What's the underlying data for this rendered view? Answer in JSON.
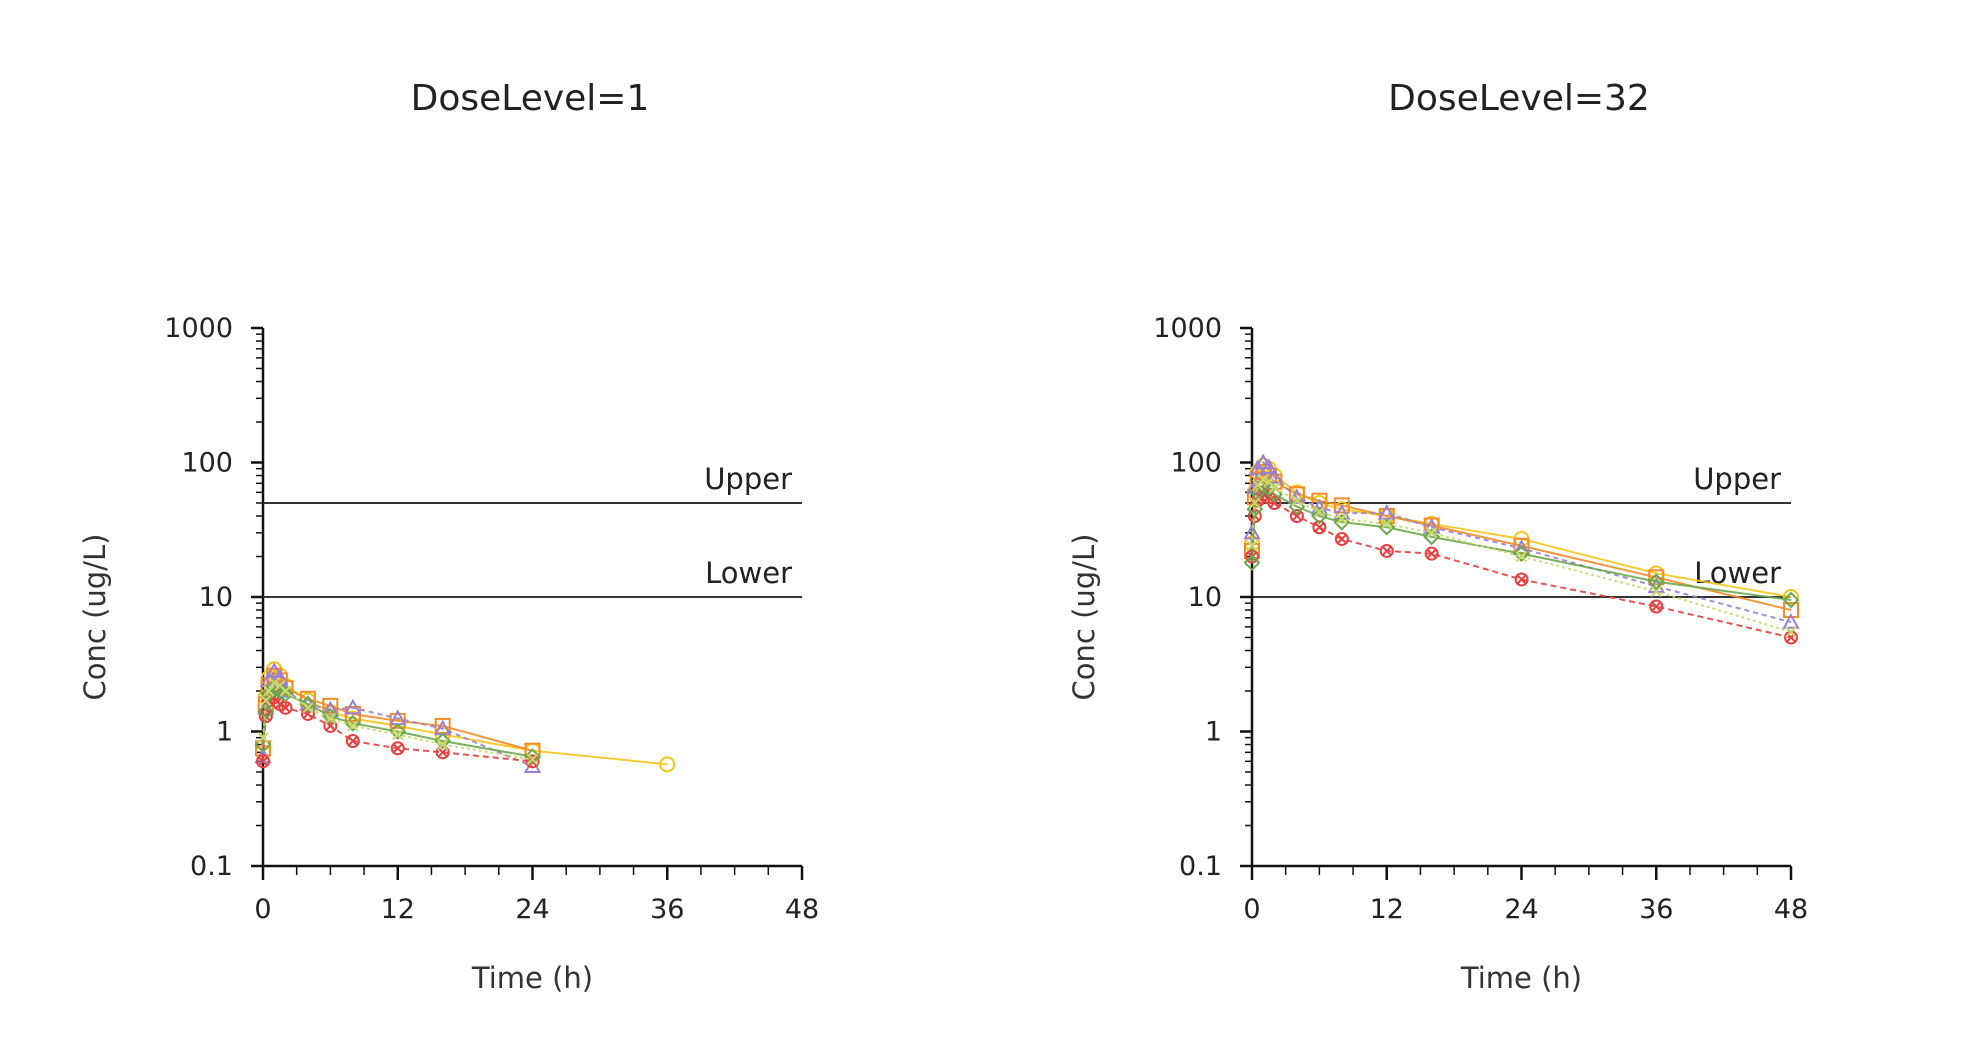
{
  "chart_data": [
    {
      "type": "line",
      "title": "DoseLevel=1",
      "xlabel": "Time (h)",
      "ylabel": "Conc (ug/L)",
      "y_scale": "log",
      "xlim": [
        0,
        48
      ],
      "ylim": [
        0.1,
        1000
      ],
      "x_ticks": [
        "0",
        "12",
        "24",
        "36",
        "48"
      ],
      "y_ticks": [
        "0.1",
        "1",
        "10",
        "100",
        "1000"
      ],
      "reference_lines": [
        {
          "label": "Upper",
          "y": 50
        },
        {
          "label": "Lower",
          "y": 10
        }
      ],
      "series": [
        {
          "color": "#f5c518",
          "marker": "circle",
          "dash": "",
          "x": [
            0,
            0.25,
            0.5,
            1,
            1.5,
            2,
            4,
            6,
            8,
            12,
            16,
            24,
            36
          ],
          "y": [
            0.7,
            1.8,
            2.5,
            2.9,
            2.6,
            2.2,
            1.7,
            1.4,
            1.25,
            1.1,
            0.95,
            0.72,
            0.57
          ]
        },
        {
          "color": "#f28c28",
          "marker": "square",
          "dash": "",
          "x": [
            0,
            0.25,
            0.5,
            1,
            1.5,
            2,
            4,
            6,
            8,
            12,
            16,
            24
          ],
          "y": [
            0.75,
            1.6,
            2.2,
            2.6,
            2.4,
            2.1,
            1.75,
            1.55,
            1.35,
            1.2,
            1.1,
            0.72
          ]
        },
        {
          "color": "#9b7fd4",
          "marker": "triangle",
          "dash": "5,4",
          "x": [
            0,
            0.25,
            0.5,
            1,
            1.5,
            2,
            4,
            6,
            8,
            12,
            16,
            24
          ],
          "y": [
            0.65,
            1.5,
            2.4,
            2.8,
            2.5,
            2.0,
            1.6,
            1.45,
            1.5,
            1.25,
            1.05,
            0.55
          ]
        },
        {
          "color": "#e84040",
          "marker": "cross-circle",
          "dash": "6,4",
          "x": [
            0,
            0.25,
            0.5,
            1,
            1.5,
            2,
            4,
            6,
            8,
            12,
            16,
            24
          ],
          "y": [
            0.6,
            1.3,
            1.7,
            1.8,
            1.6,
            1.5,
            1.35,
            1.1,
            0.85,
            0.75,
            0.7,
            0.6
          ]
        },
        {
          "color": "#6aa84f",
          "marker": "diamond",
          "dash": "",
          "x": [
            0,
            0.25,
            0.5,
            1,
            1.5,
            2,
            4,
            6,
            8,
            12,
            16,
            24
          ],
          "y": [
            0.8,
            1.4,
            1.9,
            2.1,
            2.0,
            1.9,
            1.6,
            1.3,
            1.15,
            1.0,
            0.85,
            0.65
          ]
        },
        {
          "color": "#c9d86b",
          "marker": "x",
          "dash": "3,3",
          "x": [
            0,
            0.25,
            0.5,
            1,
            1.5,
            2,
            4,
            6,
            8,
            12,
            16,
            24
          ],
          "y": [
            0.9,
            1.7,
            2.0,
            2.3,
            2.2,
            2.0,
            1.5,
            1.25,
            1.1,
            0.95,
            0.8,
            0.62
          ]
        }
      ]
    },
    {
      "type": "line",
      "title": "DoseLevel=32",
      "xlabel": "Time (h)",
      "ylabel": "Conc (ug/L)",
      "y_scale": "log",
      "xlim": [
        0,
        48
      ],
      "ylim": [
        0.1,
        1000
      ],
      "x_ticks": [
        "0",
        "12",
        "24",
        "36",
        "48"
      ],
      "y_ticks": [
        "0.1",
        "1",
        "10",
        "100",
        "1000"
      ],
      "reference_lines": [
        {
          "label": "Upper",
          "y": 50
        },
        {
          "label": "Lower",
          "y": 10
        }
      ],
      "series": [
        {
          "color": "#f5c518",
          "marker": "circle",
          "dash": "",
          "x": [
            0,
            0.25,
            0.5,
            1,
            1.5,
            2,
            4,
            6,
            8,
            12,
            16,
            24,
            36,
            48
          ],
          "y": [
            25,
            60,
            85,
            95,
            90,
            80,
            60,
            50,
            45,
            40,
            35,
            27,
            15,
            10
          ]
        },
        {
          "color": "#f28c28",
          "marker": "square",
          "dash": "",
          "x": [
            0,
            0.25,
            0.5,
            1,
            1.5,
            2,
            4,
            6,
            8,
            12,
            16,
            24,
            36,
            48
          ],
          "y": [
            22,
            55,
            75,
            85,
            80,
            72,
            58,
            52,
            48,
            40,
            34,
            24,
            14,
            8
          ]
        },
        {
          "color": "#9b7fd4",
          "marker": "triangle",
          "dash": "5,4",
          "x": [
            0,
            0.25,
            0.5,
            1,
            1.5,
            2,
            4,
            6,
            8,
            12,
            16,
            24,
            36,
            48
          ],
          "y": [
            30,
            65,
            90,
            100,
            92,
            78,
            55,
            46,
            42,
            42,
            33,
            23,
            12,
            6.5
          ]
        },
        {
          "color": "#e84040",
          "marker": "cross-circle",
          "dash": "6,4",
          "x": [
            0,
            0.25,
            0.5,
            1,
            1.5,
            2,
            4,
            6,
            8,
            12,
            16,
            24,
            36,
            48
          ],
          "y": [
            20,
            40,
            52,
            58,
            55,
            50,
            40,
            33,
            27,
            22,
            21,
            13.5,
            8.5,
            5
          ]
        },
        {
          "color": "#6aa84f",
          "marker": "diamond",
          "dash": "",
          "x": [
            0,
            0.25,
            0.5,
            1,
            1.5,
            2,
            4,
            6,
            8,
            12,
            16,
            24,
            36,
            48
          ],
          "y": [
            18,
            45,
            60,
            68,
            65,
            58,
            47,
            40,
            36,
            33,
            28,
            21,
            13,
            9.5
          ]
        },
        {
          "color": "#c9d86b",
          "marker": "x",
          "dash": "3,3",
          "x": [
            0,
            0.25,
            0.5,
            1,
            1.5,
            2,
            4,
            6,
            8,
            12,
            16,
            24,
            36,
            48
          ],
          "y": [
            24,
            50,
            68,
            75,
            72,
            65,
            52,
            43,
            38,
            35,
            30,
            20,
            11,
            5.5
          ]
        }
      ]
    }
  ]
}
